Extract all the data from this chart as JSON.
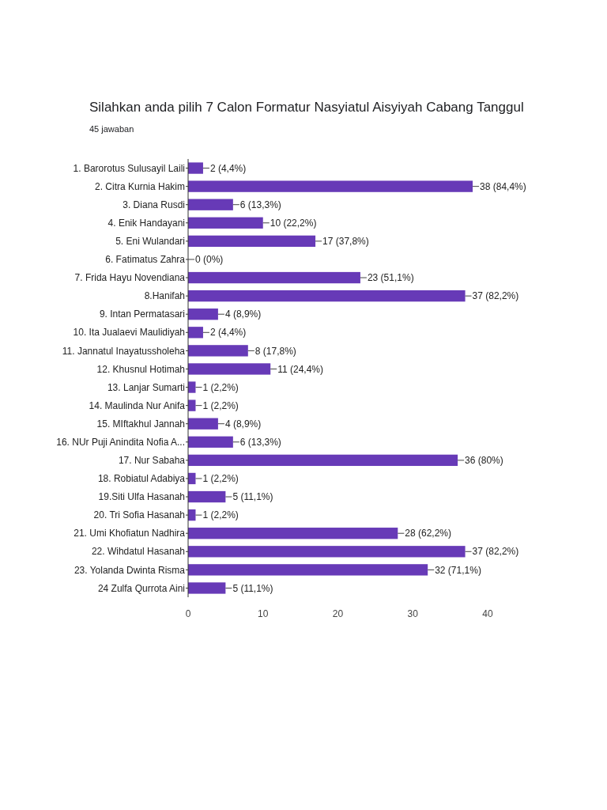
{
  "chart_data": {
    "type": "bar",
    "orientation": "horizontal",
    "title": "Silahkan anda pilih 7 Calon Formatur Nasyiatul Aisyiyah Cabang Tanggul",
    "subtitle": "45 jawaban",
    "categories": [
      "1. Barorotus Sulusayil Laili",
      "2. Citra Kurnia Hakim",
      "3. Diana Rusdi",
      "4. Enik Handayani",
      "5. Eni Wulandari",
      "6. Fatimatus Zahra",
      "7. Frida Hayu Novendiana",
      "8.Hanifah",
      "9. Intan Permatasari",
      "10. Ita Jualaevi Maulidiyah",
      "11. Jannatul Inayatussholeha",
      "12. Khusnul Hotimah",
      "13. Lanjar Sumarti",
      "14. Maulinda Nur Anifa",
      "15. MIftakhul Jannah",
      "16. NUr Puji Anindita Nofia A...",
      "17. Nur Sabaha",
      "18. Robiatul Adabiya",
      "19.Siti Ulfa Hasanah",
      "20. Tri Sofia Hasanah",
      "21. Umi Khofiatun Nadhira",
      "22. Wihdatul Hasanah",
      "23. Yolanda Dwinta Risma",
      "24 Zulfa Qurrota Aini"
    ],
    "values": [
      2,
      38,
      6,
      10,
      17,
      0,
      23,
      37,
      4,
      2,
      8,
      11,
      1,
      1,
      4,
      6,
      36,
      1,
      5,
      1,
      28,
      37,
      32,
      5
    ],
    "value_labels": [
      "2 (4,4%)",
      "38 (84,4%)",
      "6 (13,3%)",
      "10 (22,2%)",
      "17 (37,8%)",
      "0 (0%)",
      "23 (51,1%)",
      "37 (82,2%)",
      "4 (8,9%)",
      "2 (4,4%)",
      "8 (17,8%)",
      "11 (24,4%)",
      "1 (2,2%)",
      "1 (2,2%)",
      "4 (8,9%)",
      "6 (13,3%)",
      "36 (80%)",
      "1 (2,2%)",
      "5 (11,1%)",
      "1 (2,2%)",
      "28 (62,2%)",
      "37 (82,2%)",
      "32 (71,1%)",
      "5 (11,1%)"
    ],
    "color": "#673ab7",
    "xlim": [
      0,
      40
    ],
    "xticks": [
      0,
      10,
      20,
      30,
      40
    ],
    "grid": false
  }
}
